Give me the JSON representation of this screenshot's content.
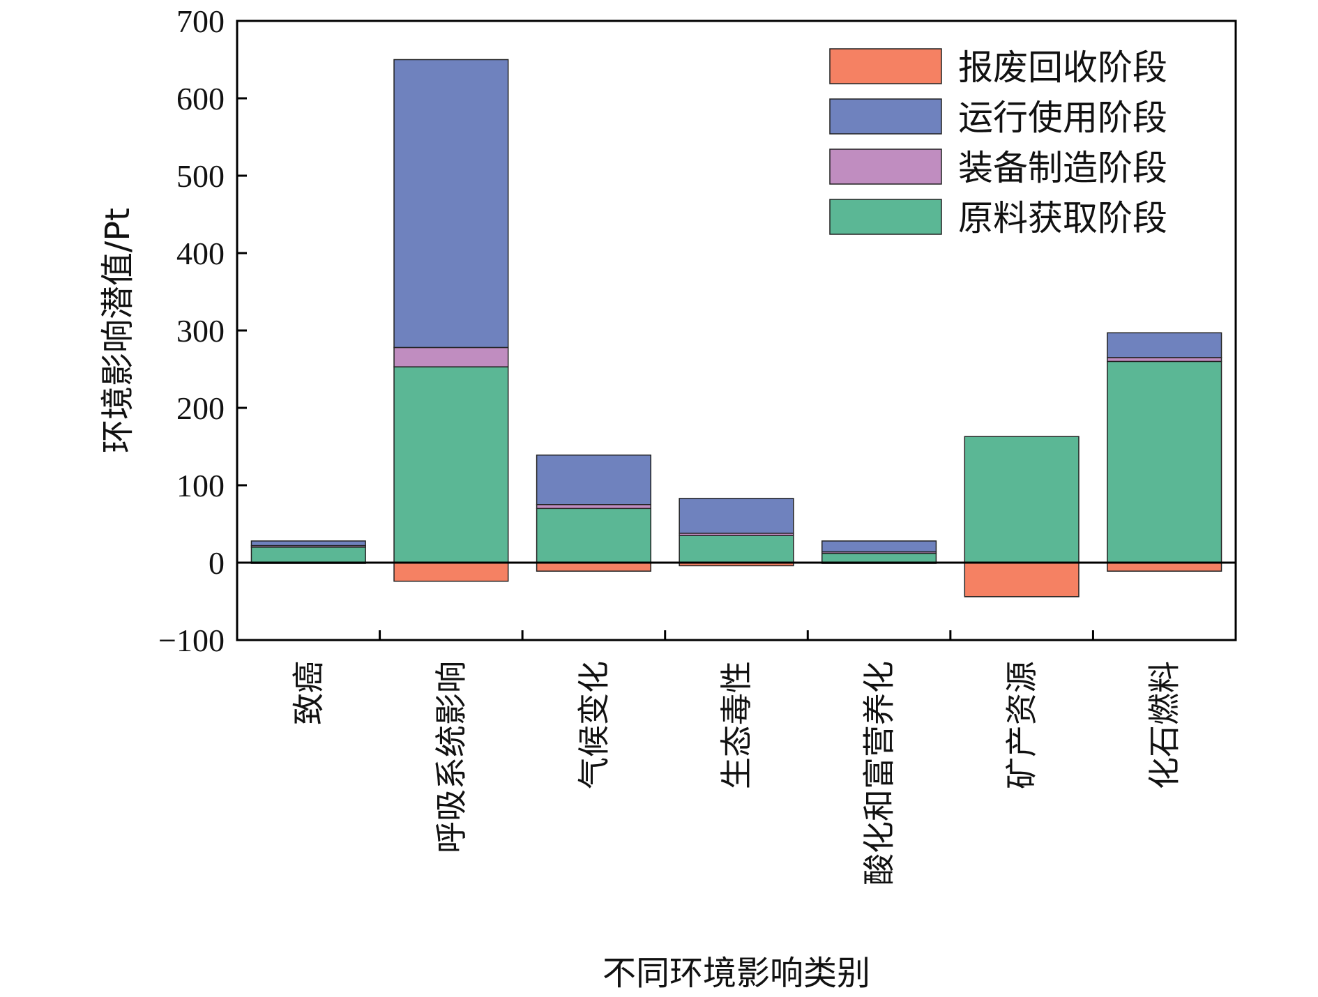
{
  "chart_data": {
    "type": "bar",
    "stacked": true,
    "title": "",
    "xlabel": "不同环境影响类别",
    "ylabel": "环境影响潜值/Pt",
    "ylim": [
      -100,
      700
    ],
    "yticks": [
      -100,
      0,
      100,
      200,
      300,
      400,
      500,
      600,
      700
    ],
    "ytick_labels": [
      "−100",
      "0",
      "100",
      "200",
      "300",
      "400",
      "500",
      "600",
      "700"
    ],
    "grid": false,
    "legend_position": "top-right",
    "categories": [
      "致癌",
      "呼吸系统影响",
      "气候变化",
      "生态毒性",
      "酸化和富营养化",
      "矿产资源",
      "化石燃料"
    ],
    "series": [
      {
        "name": "原料获取阶段",
        "color": "#5bb795",
        "values": [
          20,
          253,
          70,
          35,
          12,
          163,
          260
        ]
      },
      {
        "name": "装备制造阶段",
        "color": "#c08dc0",
        "values": [
          2,
          25,
          5,
          3,
          2,
          0,
          5
        ]
      },
      {
        "name": "运行使用阶段",
        "color": "#6f82be",
        "values": [
          6,
          372,
          64,
          45,
          14,
          0,
          32
        ]
      },
      {
        "name": "报废回收阶段",
        "color": "#f58163",
        "values": [
          -1,
          -24,
          -11,
          -4,
          -1,
          -44,
          -11
        ]
      }
    ],
    "legend_order": [
      3,
      2,
      1,
      0
    ]
  }
}
